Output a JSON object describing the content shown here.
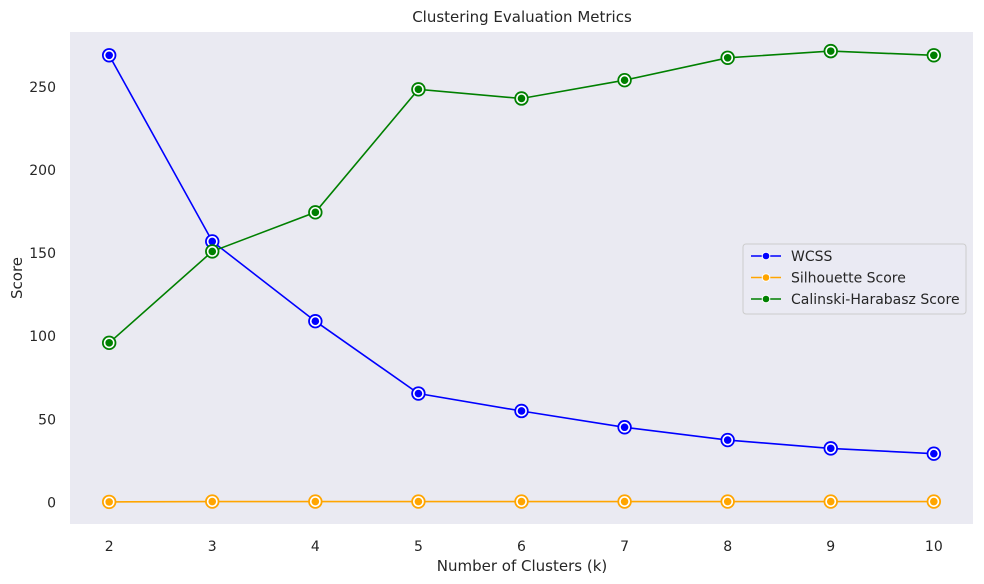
{
  "chart_data": {
    "type": "line",
    "title": "Clustering Evaluation Metrics",
    "xlabel": "Number of Clusters (k)",
    "ylabel": "Score",
    "x": [
      2,
      3,
      4,
      5,
      6,
      7,
      8,
      9,
      10
    ],
    "xlim": [
      1.62,
      10.38
    ],
    "ylim": [
      -13,
      283
    ],
    "yticks": [
      0,
      50,
      100,
      150,
      200,
      250
    ],
    "grid": false,
    "legend_position": "right",
    "series": [
      {
        "name": "WCSS",
        "color": "#0000ff",
        "values": [
          269,
          157,
          109,
          65.5,
          55,
          45.2,
          37.5,
          32.5,
          29.3
        ]
      },
      {
        "name": "Silhouette Score",
        "color": "#ffa500",
        "values": [
          0.3,
          0.5,
          0.5,
          0.5,
          0.5,
          0.5,
          0.5,
          0.5,
          0.5
        ]
      },
      {
        "name": "Calinski-Harabasz Score",
        "color": "#008000",
        "values": [
          96,
          151,
          174.5,
          248.5,
          243,
          254,
          267.5,
          271.5,
          269
        ]
      }
    ]
  }
}
